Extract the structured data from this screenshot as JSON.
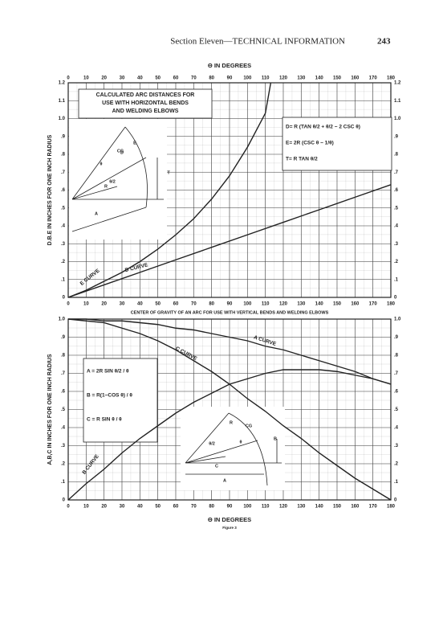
{
  "header": {
    "section": "Section Eleven—TECHNICAL INFORMATION",
    "page_number": "243"
  },
  "chart_data": [
    {
      "type": "line",
      "title": [
        "CALCULATED ARC DISTANCES FOR",
        "USE WITH HORIZONTAL BENDS",
        "AND WELDING ELBOWS"
      ],
      "x_label": "Θ IN DEGREES",
      "y_label": "D.B.E IN INCHES FOR ONE INCH RADIUS",
      "formulas": [
        "D= R (TAN θ/2 + θ/2 − 2 CSC θ)",
        "E= 2R (CSC θ − 1/θ)",
        "T= R TAN θ/2"
      ],
      "inset_labels": [
        "D",
        "E",
        "T",
        "A",
        "R",
        "θ",
        "θ/2",
        "CG"
      ],
      "xlim": [
        0,
        180
      ],
      "ylim": [
        0,
        1.2
      ],
      "xticks": [
        0,
        10,
        20,
        30,
        40,
        50,
        60,
        70,
        80,
        90,
        100,
        110,
        120,
        130,
        140,
        150,
        160,
        170,
        180
      ],
      "yticks": [
        0,
        {
          "value": 0.1,
          "label": ".1"
        },
        {
          "value": 0.2,
          "label": ".2"
        },
        {
          "value": 0.3,
          "label": ".3"
        },
        {
          "value": 0.4,
          "label": ".4"
        },
        {
          "value": 0.5,
          "label": ".5"
        },
        {
          "value": 0.6,
          "label": ".6"
        },
        {
          "value": 0.7,
          "label": ".7"
        },
        {
          "value": 0.8,
          "label": ".8"
        },
        {
          "value": 0.9,
          "label": ".9"
        },
        {
          "value": 1.0,
          "label": "1.0"
        },
        1.1,
        1.2
      ],
      "grid": true,
      "series": [
        {
          "name": "E CURVE",
          "color": "#222222",
          "x": [
            0,
            10,
            20,
            30,
            40,
            50,
            60,
            70,
            80,
            90,
            100,
            110,
            113
          ],
          "values": [
            0,
            0.04,
            0.09,
            0.14,
            0.2,
            0.27,
            0.35,
            0.44,
            0.55,
            0.68,
            0.84,
            1.03,
            1.2
          ]
        },
        {
          "name": "D CURVE",
          "color": "#222222",
          "x": [
            0,
            20,
            40,
            60,
            80,
            100,
            120,
            140,
            160,
            180
          ],
          "values": [
            0,
            0.07,
            0.14,
            0.21,
            0.28,
            0.35,
            0.42,
            0.49,
            0.56,
            0.63
          ]
        }
      ]
    },
    {
      "type": "line",
      "title": [
        "CENTER OF GRAVITY OF AN ARC FOR USE WITH VERTICAL BENDS AND WELDING ELBOWS"
      ],
      "x_label": "Θ IN DEGREES",
      "y_label": "A,B,C IN INCHES FOR ONE INCH RADIUS",
      "caption": "Figure 3",
      "formulas": [
        "A = 2R SIN θ/2 / θ",
        "B = R(1−COS θ) / θ",
        "C = R SIN θ / θ"
      ],
      "inset_labels": [
        "A",
        "B",
        "C",
        "R",
        "θ",
        "θ/2",
        "CG"
      ],
      "xlim": [
        0,
        180
      ],
      "ylim": [
        0,
        1.0
      ],
      "xticks": [
        0,
        10,
        20,
        30,
        40,
        50,
        60,
        70,
        80,
        90,
        100,
        110,
        120,
        130,
        140,
        150,
        160,
        170,
        180
      ],
      "yticks": [
        0,
        {
          "value": 0.1,
          "label": ".1"
        },
        {
          "value": 0.2,
          "label": ".2"
        },
        {
          "value": 0.3,
          "label": ".3"
        },
        {
          "value": 0.4,
          "label": ".4"
        },
        {
          "value": 0.5,
          "label": ".5"
        },
        {
          "value": 0.6,
          "label": ".6"
        },
        {
          "value": 0.7,
          "label": ".7"
        },
        {
          "value": 0.8,
          "label": ".8"
        },
        {
          "value": 0.9,
          "label": ".9"
        },
        {
          "value": 1.0,
          "label": "1.0"
        }
      ],
      "grid": true,
      "x": [
        0,
        10,
        20,
        30,
        40,
        50,
        60,
        70,
        80,
        90,
        100,
        110,
        120,
        130,
        140,
        150,
        160,
        170,
        180
      ],
      "series": [
        {
          "name": "A CURVE",
          "color": "#222222",
          "values": [
            1.0,
            1.0,
            0.99,
            0.99,
            0.98,
            0.97,
            0.95,
            0.94,
            0.92,
            0.9,
            0.88,
            0.85,
            0.83,
            0.8,
            0.77,
            0.74,
            0.71,
            0.67,
            0.64
          ]
        },
        {
          "name": "B CURVE",
          "color": "#222222",
          "values": [
            0,
            0.09,
            0.17,
            0.26,
            0.34,
            0.41,
            0.48,
            0.54,
            0.59,
            0.64,
            0.67,
            0.7,
            0.72,
            0.72,
            0.72,
            0.71,
            0.69,
            0.67,
            0.64
          ]
        },
        {
          "name": "C CURVE",
          "color": "#222222",
          "values": [
            1.0,
            0.99,
            0.98,
            0.95,
            0.92,
            0.88,
            0.83,
            0.77,
            0.71,
            0.64,
            0.56,
            0.49,
            0.41,
            0.34,
            0.26,
            0.19,
            0.12,
            0.06,
            0
          ]
        }
      ]
    }
  ]
}
